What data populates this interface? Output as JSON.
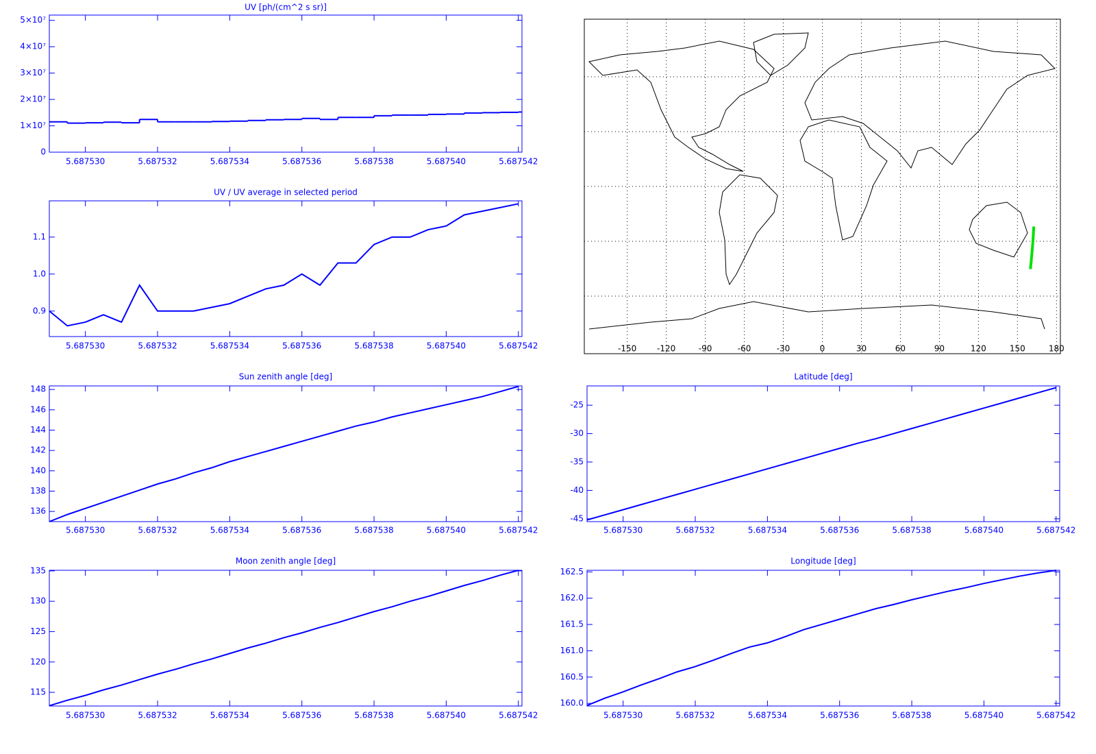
{
  "chart_data": [
    {
      "type": "line",
      "step": true,
      "title": "UV [ph/(cm^2 s sr)]",
      "color": "#0000ff",
      "x": [
        5.687529,
        5.6875295,
        5.68753,
        5.6875305,
        5.687531,
        5.6875315,
        5.687532,
        5.6875325,
        5.687533,
        5.6875335,
        5.687534,
        5.6875345,
        5.687535,
        5.6875355,
        5.687536,
        5.6875365,
        5.687537,
        5.6875375,
        5.687538,
        5.6875385,
        5.687539,
        5.6875395,
        5.68754,
        5.6875405,
        5.687541,
        5.6875415,
        5.687542
      ],
      "values": [
        11520000,
        11010000,
        11140000,
        11390000,
        11140000,
        12420000,
        11520000,
        11520000,
        11520000,
        11650000,
        11780000,
        12030000,
        12290000,
        12420000,
        12800000,
        12420000,
        13180000,
        13180000,
        13820000,
        14080000,
        14080000,
        14340000,
        14460000,
        14850000,
        14980000,
        15100000,
        15230000
      ],
      "xlim": [
        5.687529,
        5.6875421
      ],
      "xticks": [
        {
          "value": 5.68753,
          "label": "5.687530"
        },
        5.687532,
        5.687534,
        5.687536,
        5.687538,
        {
          "value": 5.68754,
          "label": "5.687540"
        },
        5.687542
      ],
      "ylim": [
        0,
        52000000
      ],
      "yticks": [
        0,
        {
          "value": 10000000,
          "label": "1×10⁷"
        },
        {
          "value": 20000000,
          "label": "2×10⁷"
        },
        {
          "value": 30000000,
          "label": "3×10⁷"
        },
        {
          "value": 40000000,
          "label": "4×10⁷"
        },
        {
          "value": 50000000,
          "label": "5×10⁷"
        }
      ]
    },
    {
      "type": "line",
      "title": "UV / UV average in selected period",
      "color": "#0000ff",
      "x": [
        5.687529,
        5.6875295,
        5.68753,
        5.6875305,
        5.687531,
        5.6875315,
        5.687532,
        5.6875325,
        5.687533,
        5.6875335,
        5.687534,
        5.6875345,
        5.687535,
        5.6875355,
        5.687536,
        5.6875365,
        5.687537,
        5.6875375,
        5.687538,
        5.6875385,
        5.687539,
        5.6875395,
        5.68754,
        5.6875405,
        5.687541,
        5.6875415,
        5.687542
      ],
      "values": [
        0.9,
        0.86,
        0.87,
        0.89,
        0.87,
        0.97,
        0.9,
        0.9,
        0.9,
        0.91,
        0.92,
        0.94,
        0.96,
        0.97,
        1.0,
        0.97,
        1.03,
        1.03,
        1.08,
        1.1,
        1.1,
        1.12,
        1.13,
        1.16,
        1.17,
        1.18,
        1.19
      ],
      "xlim": [
        5.687529,
        5.6875421
      ],
      "xticks": [
        {
          "value": 5.68753,
          "label": "5.687530"
        },
        5.687532,
        5.687534,
        5.687536,
        5.687538,
        {
          "value": 5.68754,
          "label": "5.687540"
        },
        5.687542
      ],
      "ylim": [
        0.831,
        1.198
      ],
      "yticks": [
        0.9,
        {
          "value": 1.0,
          "label": "1.0"
        },
        1.1
      ]
    },
    {
      "type": "map",
      "track_color": "#00e000",
      "grid": true,
      "xlim": [
        -183,
        183
      ],
      "xticks": [
        -150,
        -120,
        -90,
        -60,
        -30,
        0,
        30,
        60,
        90,
        120,
        150,
        180
      ],
      "ylim": [
        -91.5,
        91.5
      ],
      "yticks": [
        -60,
        -30,
        0,
        30,
        60
      ]
    },
    {
      "type": "line",
      "title": "Sun zenith angle [deg]",
      "color": "#0000ff",
      "x": [
        5.687529,
        5.6875295,
        5.68753,
        5.6875305,
        5.687531,
        5.6875315,
        5.687532,
        5.6875325,
        5.687533,
        5.6875335,
        5.687534,
        5.6875345,
        5.687535,
        5.6875355,
        5.687536,
        5.6875365,
        5.687537,
        5.6875375,
        5.687538,
        5.6875385,
        5.687539,
        5.6875395,
        5.68754,
        5.6875405,
        5.687541,
        5.6875415,
        5.687542
      ],
      "values": [
        135.0,
        135.7,
        136.3,
        136.9,
        137.5,
        138.1,
        138.7,
        139.2,
        139.8,
        140.3,
        140.9,
        141.4,
        141.9,
        142.4,
        142.9,
        143.4,
        143.9,
        144.4,
        144.8,
        145.3,
        145.7,
        146.1,
        146.5,
        146.9,
        147.3,
        147.8,
        148.3
      ],
      "xlim": [
        5.687529,
        5.6875421
      ],
      "xticks": [
        {
          "value": 5.68753,
          "label": "5.687530"
        },
        5.687532,
        5.687534,
        5.687536,
        5.687538,
        {
          "value": 5.68754,
          "label": "5.687540"
        },
        5.687542
      ],
      "ylim": [
        135,
        148.35
      ],
      "yticks": [
        136,
        138,
        140,
        142,
        144,
        146,
        148
      ]
    },
    {
      "type": "line",
      "title": "Latitude [deg]",
      "color": "#0000ff",
      "x": [
        5.687529,
        5.6875295,
        5.68753,
        5.6875305,
        5.687531,
        5.6875315,
        5.687532,
        5.6875325,
        5.687533,
        5.6875335,
        5.687534,
        5.6875345,
        5.687535,
        5.6875355,
        5.687536,
        5.6875365,
        5.687537,
        5.6875375,
        5.687538,
        5.6875385,
        5.687539,
        5.6875395,
        5.68754,
        5.6875405,
        5.687541,
        5.6875415,
        5.687542
      ],
      "values": [
        -45.2,
        -44.3,
        -43.4,
        -42.5,
        -41.6,
        -40.7,
        -39.8,
        -38.9,
        -38.0,
        -37.1,
        -36.2,
        -35.3,
        -34.4,
        -33.5,
        -32.6,
        -31.7,
        -30.9,
        -30.0,
        -29.1,
        -28.2,
        -27.3,
        -26.4,
        -25.5,
        -24.6,
        -23.7,
        -22.8,
        -21.9
      ],
      "xlim": [
        5.687529,
        5.6875421
      ],
      "xticks": [
        {
          "value": 5.68753,
          "label": "5.687530"
        },
        5.687532,
        5.687534,
        5.687536,
        5.687538,
        {
          "value": 5.68754,
          "label": "5.687540"
        },
        5.687542
      ],
      "ylim": [
        -45.5,
        -21.6
      ],
      "yticks": [
        -45,
        -40,
        -35,
        -30,
        -25
      ]
    },
    {
      "type": "line",
      "title": "Moon zenith angle [deg]",
      "color": "#0000ff",
      "x": [
        5.687529,
        5.6875295,
        5.68753,
        5.6875305,
        5.687531,
        5.6875315,
        5.687532,
        5.6875325,
        5.687533,
        5.6875335,
        5.687534,
        5.6875345,
        5.687535,
        5.6875355,
        5.687536,
        5.6875365,
        5.687537,
        5.6875375,
        5.687538,
        5.6875385,
        5.687539,
        5.6875395,
        5.68754,
        5.6875405,
        5.687541,
        5.6875415,
        5.687542
      ],
      "values": [
        112.8,
        113.7,
        114.5,
        115.4,
        116.2,
        117.1,
        118.0,
        118.8,
        119.7,
        120.5,
        121.4,
        122.3,
        123.1,
        124.0,
        124.8,
        125.7,
        126.5,
        127.4,
        128.3,
        129.1,
        130.0,
        130.8,
        131.7,
        132.6,
        133.4,
        134.3,
        135.1
      ],
      "xlim": [
        5.687529,
        5.6875421
      ],
      "xticks": [
        {
          "value": 5.68753,
          "label": "5.687530"
        },
        5.687532,
        5.687534,
        5.687536,
        5.687538,
        {
          "value": 5.68754,
          "label": "5.687540"
        },
        5.687542
      ],
      "ylim": [
        112.75,
        135.1
      ],
      "yticks": [
        115,
        120,
        125,
        130,
        135
      ]
    },
    {
      "type": "line",
      "title": "Longitude [deg]",
      "color": "#0000ff",
      "x": [
        5.687529,
        5.6875295,
        5.68753,
        5.6875305,
        5.687531,
        5.6875315,
        5.687532,
        5.6875325,
        5.687533,
        5.6875335,
        5.687534,
        5.6875345,
        5.687535,
        5.6875355,
        5.687536,
        5.6875365,
        5.687537,
        5.6875375,
        5.687538,
        5.6875385,
        5.687539,
        5.6875395,
        5.68754,
        5.6875405,
        5.687541,
        5.6875415,
        5.687542
      ],
      "values": [
        159.96,
        160.1,
        160.22,
        160.35,
        160.47,
        160.6,
        160.7,
        160.82,
        160.95,
        161.07,
        161.15,
        161.27,
        161.4,
        161.5,
        161.6,
        161.7,
        161.8,
        161.88,
        161.97,
        162.05,
        162.13,
        162.2,
        162.28,
        162.35,
        162.42,
        162.48,
        162.53
      ],
      "xlim": [
        5.687529,
        5.6875421
      ],
      "xticks": [
        {
          "value": 5.68753,
          "label": "5.687530"
        },
        5.687532,
        5.687534,
        5.687536,
        5.687538,
        {
          "value": 5.68754,
          "label": "5.687540"
        },
        5.687542
      ],
      "ylim": [
        159.95,
        162.53
      ],
      "yticks": [
        {
          "value": 160.0,
          "label": "160.0"
        },
        160.5,
        {
          "value": 161.0,
          "label": "161.0"
        },
        161.5,
        {
          "value": 162.0,
          "label": "162.0"
        },
        162.5
      ]
    }
  ]
}
